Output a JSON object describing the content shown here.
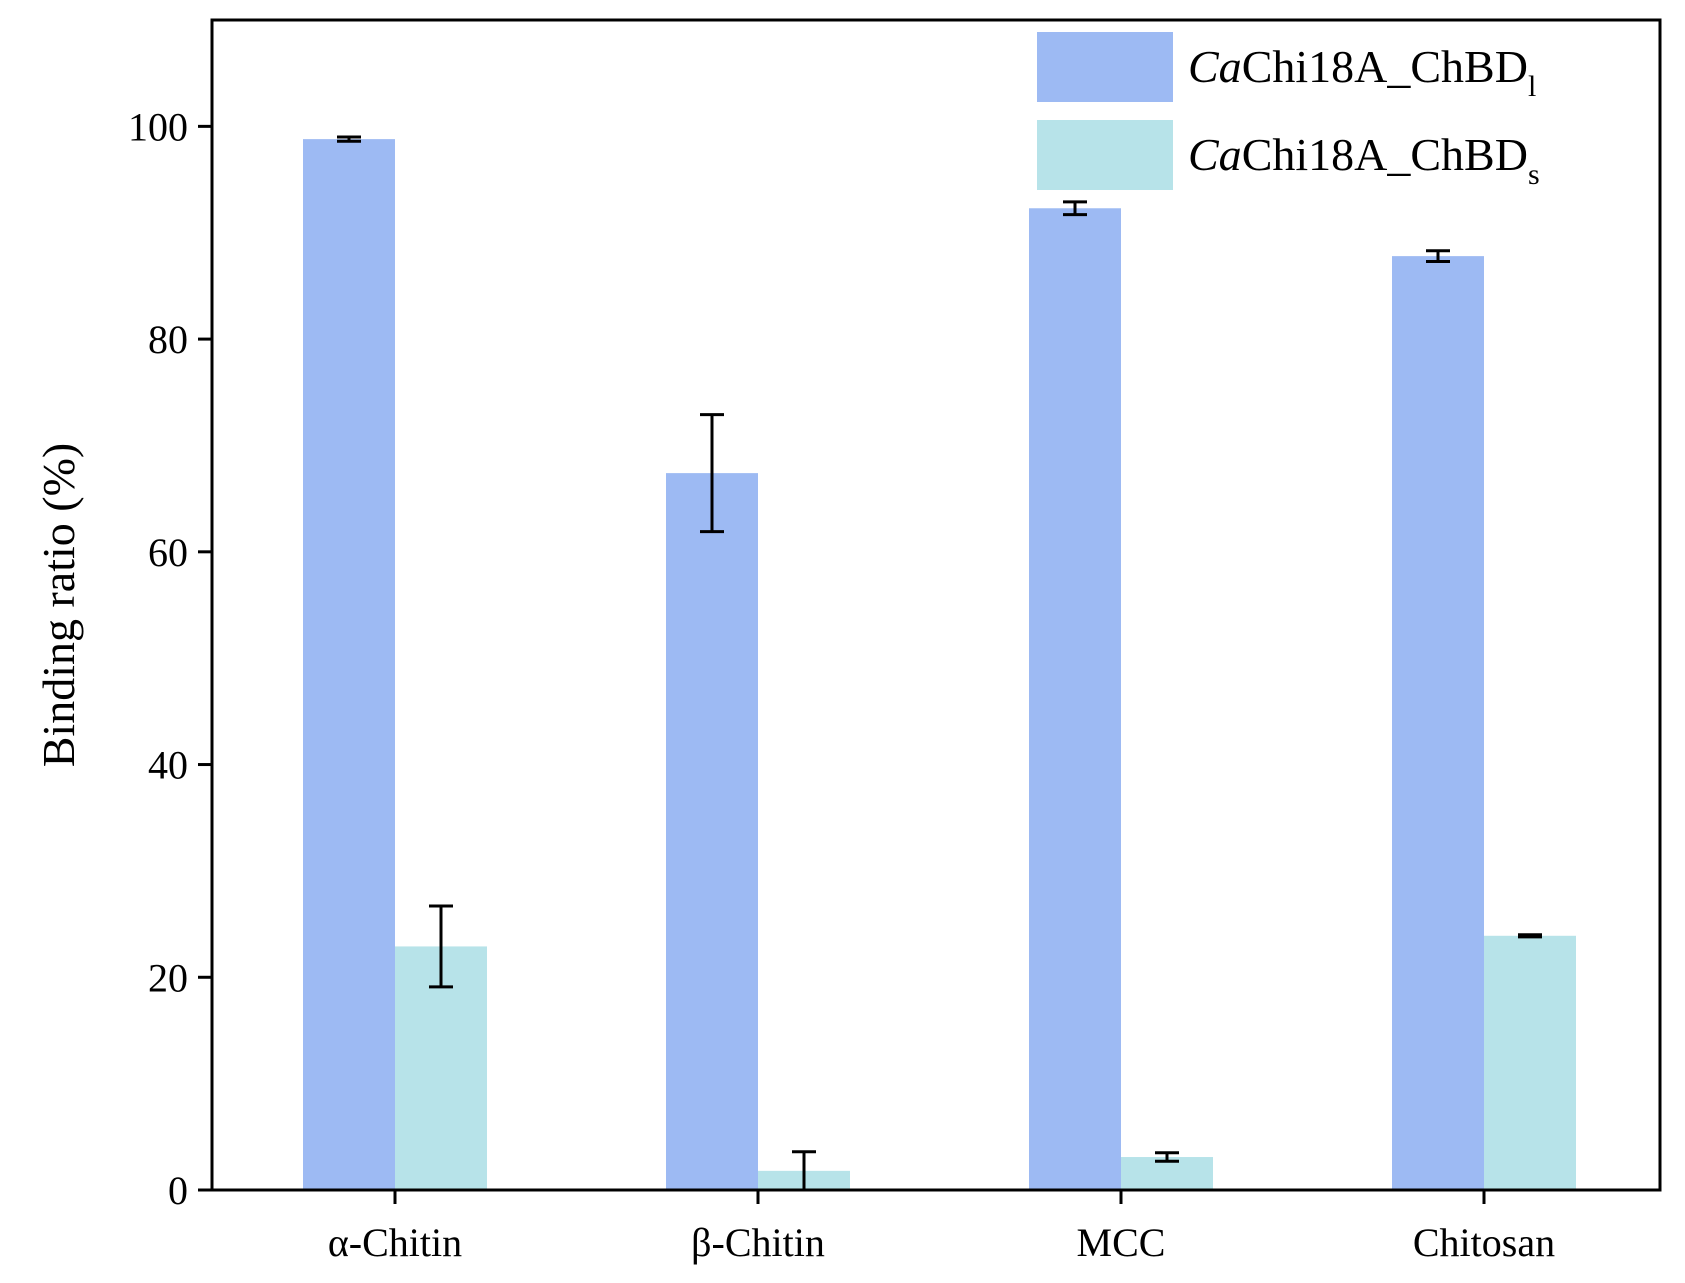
{
  "chart_data": {
    "type": "bar",
    "title": "",
    "xlabel": "",
    "ylabel": "Binding ratio (%)",
    "ylim": [
      0,
      110
    ],
    "yticks": [
      0,
      20,
      40,
      60,
      80,
      100
    ],
    "ytick_labels": [
      "0",
      "20",
      "40",
      "60",
      "80",
      "100"
    ],
    "categories": [
      "α-Chitin",
      "β-Chitin",
      "MCC",
      "Chitosan"
    ],
    "legend_position": "top-right",
    "series": [
      {
        "name": "CaChi18A_ChBDl",
        "label_italic": "Ca",
        "label_main": "Chi18A_ChBD",
        "label_sub": "l",
        "color": "#9DBAF3",
        "values": [
          98.8,
          67.4,
          92.3,
          87.8
        ],
        "errors": [
          0.2,
          5.5,
          0.6,
          0.5
        ]
      },
      {
        "name": "CaChi18A_ChBDs",
        "label_italic": "Ca",
        "label_main": "Chi18A_ChBD",
        "label_sub": "s",
        "color": "#B7E3E9",
        "values": [
          22.9,
          1.8,
          3.1,
          23.9
        ],
        "errors": [
          3.8,
          1.8,
          0.4,
          0.1
        ]
      }
    ]
  }
}
